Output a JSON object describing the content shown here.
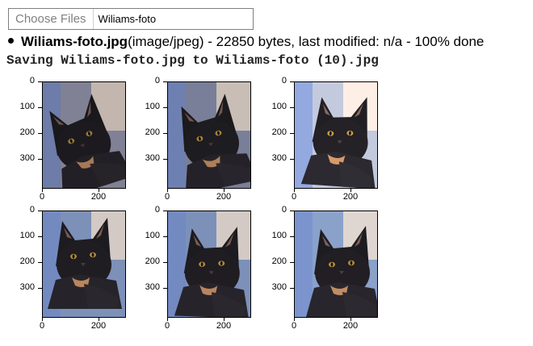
{
  "file_input": {
    "button_label": "Choose Files",
    "file_name": "Wiliams-foto"
  },
  "upload_status": {
    "file_name": "Wiliams-foto.jpg",
    "details": "(image/jpeg) - 22850 bytes, last modified: n/a - 100% done"
  },
  "saving_message": "Saving Wiliams-foto.jpg to Wiliams-foto (10).jpg",
  "plots": {
    "y_ticks": [
      "0",
      "100",
      "200",
      "300"
    ],
    "x_ticks": [
      "0",
      "200"
    ],
    "panels": [
      {
        "row": 0,
        "col": 0,
        "variant": "rotated-left"
      },
      {
        "row": 0,
        "col": 1,
        "variant": "rotated-left-2"
      },
      {
        "row": 0,
        "col": 2,
        "variant": "bright"
      },
      {
        "row": 1,
        "col": 0,
        "variant": "shifted-up"
      },
      {
        "row": 1,
        "col": 1,
        "variant": "normal"
      },
      {
        "row": 1,
        "col": 2,
        "variant": "normal-2"
      }
    ]
  }
}
